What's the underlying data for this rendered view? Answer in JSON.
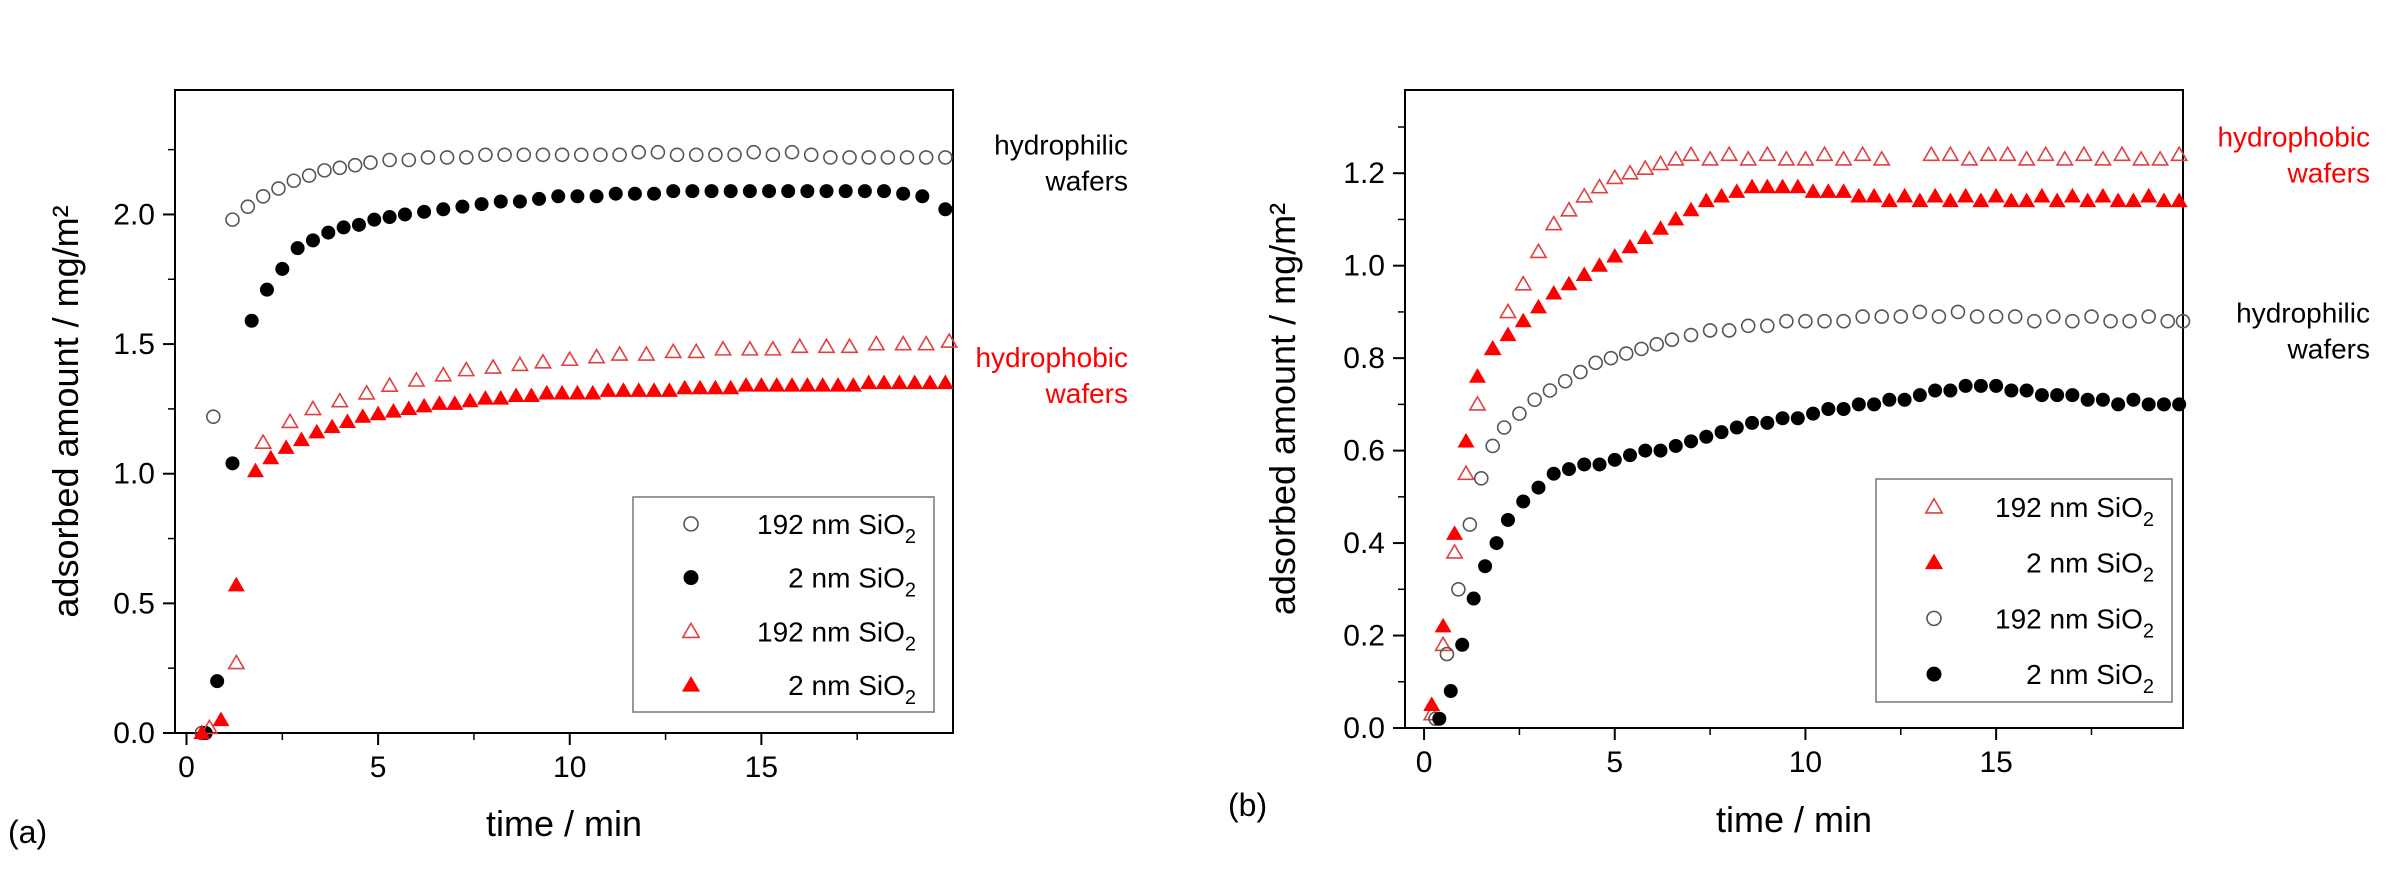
{
  "chart_data": [
    {
      "type": "scatter",
      "panel_label": "(a)",
      "xlabel": "time / min",
      "ylabel": "adsorbed amount / mg/m²",
      "xlim": [
        -0.3,
        20
      ],
      "ylim": [
        0,
        2.48
      ],
      "xticks": [
        0,
        5,
        10,
        15
      ],
      "xtick_labels": [
        "0",
        "5",
        "10",
        "15"
      ],
      "yticks": [
        0,
        0.5,
        1.0,
        1.5,
        2.0
      ],
      "ytick_labels": [
        "0.0",
        "0.5",
        "1.0",
        "1.5",
        "2.0"
      ],
      "annotations": [
        {
          "lines": [
            "hydrophilic",
            "wafers"
          ],
          "color": "#000000",
          "anchor": 2.2
        },
        {
          "lines": [
            "hydrophobic",
            "wafers"
          ],
          "color": "#ff0000",
          "anchor": 1.38
        }
      ],
      "legend": [
        {
          "size": "192",
          "unit": "nm SiO",
          "sub": "2",
          "marker": "circle-open",
          "color": "#555555"
        },
        {
          "size": "2",
          "unit": "nm SiO",
          "sub": "2",
          "marker": "circle-filled",
          "color": "#000000"
        },
        {
          "size": "192",
          "unit": "nm SiO",
          "sub": "2",
          "marker": "triangle-open",
          "color": "#e04040"
        },
        {
          "size": "2",
          "unit": "nm SiO",
          "sub": "2",
          "marker": "triangle-filled",
          "color": "#ff0000"
        }
      ],
      "series": [
        {
          "name": "192 nm SiO2 (hydrophilic)",
          "marker": "circle-open",
          "color": "#555555",
          "x": [
            0.4,
            0.7,
            1.2,
            1.6,
            2.0,
            2.4,
            2.8,
            3.2,
            3.6,
            4.0,
            4.4,
            4.8,
            5.3,
            5.8,
            6.3,
            6.8,
            7.3,
            7.8,
            8.3,
            8.8,
            9.3,
            9.8,
            10.3,
            10.8,
            11.3,
            11.8,
            12.3,
            12.8,
            13.3,
            13.8,
            14.3,
            14.8,
            15.3,
            15.8,
            16.3,
            16.8,
            17.3,
            17.8,
            18.3,
            18.8,
            19.3,
            19.8
          ],
          "y": [
            0.0,
            1.22,
            1.98,
            2.03,
            2.07,
            2.1,
            2.13,
            2.15,
            2.17,
            2.18,
            2.19,
            2.2,
            2.21,
            2.21,
            2.22,
            2.22,
            2.22,
            2.23,
            2.23,
            2.23,
            2.23,
            2.23,
            2.23,
            2.23,
            2.23,
            2.24,
            2.24,
            2.23,
            2.23,
            2.23,
            2.23,
            2.24,
            2.23,
            2.24,
            2.23,
            2.22,
            2.22,
            2.22,
            2.22,
            2.22,
            2.22,
            2.22
          ]
        },
        {
          "name": "2 nm SiO2 (hydrophilic)",
          "marker": "circle-filled",
          "color": "#000000",
          "x": [
            0.5,
            0.8,
            1.2,
            1.7,
            2.1,
            2.5,
            2.9,
            3.3,
            3.7,
            4.1,
            4.5,
            4.9,
            5.3,
            5.7,
            6.2,
            6.7,
            7.2,
            7.7,
            8.2,
            8.7,
            9.2,
            9.7,
            10.2,
            10.7,
            11.2,
            11.7,
            12.2,
            12.7,
            13.2,
            13.7,
            14.2,
            14.7,
            15.2,
            15.7,
            16.2,
            16.7,
            17.2,
            17.7,
            18.2,
            18.7,
            19.2,
            19.8
          ],
          "y": [
            0.0,
            0.2,
            1.04,
            1.59,
            1.71,
            1.79,
            1.87,
            1.9,
            1.93,
            1.95,
            1.96,
            1.98,
            1.99,
            2.0,
            2.01,
            2.02,
            2.03,
            2.04,
            2.05,
            2.05,
            2.06,
            2.07,
            2.07,
            2.07,
            2.08,
            2.08,
            2.08,
            2.09,
            2.09,
            2.09,
            2.09,
            2.09,
            2.09,
            2.09,
            2.09,
            2.09,
            2.09,
            2.09,
            2.09,
            2.08,
            2.07,
            2.02
          ]
        },
        {
          "name": "192 nm SiO2 (hydrophobic)",
          "marker": "triangle-open",
          "color": "#e04040",
          "x": [
            0.6,
            1.3,
            2.0,
            2.7,
            3.3,
            4.0,
            4.7,
            5.3,
            6.0,
            6.7,
            7.3,
            8.0,
            8.7,
            9.3,
            10.0,
            10.7,
            11.3,
            12.0,
            12.7,
            13.3,
            14.0,
            14.7,
            15.3,
            16.0,
            16.7,
            17.3,
            18.0,
            18.7,
            19.3,
            19.9
          ],
          "y": [
            0.02,
            0.27,
            1.12,
            1.2,
            1.25,
            1.28,
            1.31,
            1.34,
            1.36,
            1.38,
            1.4,
            1.41,
            1.42,
            1.43,
            1.44,
            1.45,
            1.46,
            1.46,
            1.47,
            1.47,
            1.48,
            1.48,
            1.48,
            1.49,
            1.49,
            1.49,
            1.5,
            1.5,
            1.5,
            1.51
          ]
        },
        {
          "name": "2 nm SiO2 (hydrophobic)",
          "marker": "triangle-filled",
          "color": "#ff0000",
          "x": [
            0.4,
            0.9,
            1.3,
            1.8,
            2.2,
            2.6,
            3.0,
            3.4,
            3.8,
            4.2,
            4.6,
            5.0,
            5.4,
            5.8,
            6.2,
            6.6,
            7.0,
            7.4,
            7.8,
            8.2,
            8.6,
            9.0,
            9.4,
            9.8,
            10.2,
            10.6,
            11.0,
            11.4,
            11.8,
            12.2,
            12.6,
            13.0,
            13.4,
            13.8,
            14.2,
            14.6,
            15.0,
            15.4,
            15.8,
            16.2,
            16.6,
            17.0,
            17.4,
            17.8,
            18.2,
            18.6,
            19.0,
            19.4,
            19.8
          ],
          "y": [
            0.0,
            0.05,
            0.57,
            1.01,
            1.06,
            1.1,
            1.13,
            1.16,
            1.18,
            1.2,
            1.22,
            1.23,
            1.24,
            1.25,
            1.26,
            1.27,
            1.27,
            1.28,
            1.29,
            1.29,
            1.3,
            1.3,
            1.31,
            1.31,
            1.31,
            1.31,
            1.32,
            1.32,
            1.32,
            1.32,
            1.32,
            1.33,
            1.33,
            1.33,
            1.33,
            1.34,
            1.34,
            1.34,
            1.34,
            1.34,
            1.34,
            1.34,
            1.34,
            1.35,
            1.35,
            1.35,
            1.35,
            1.35,
            1.35
          ]
        }
      ]
    },
    {
      "type": "scatter",
      "panel_label": "(b)",
      "xlabel": "time / min",
      "ylabel": "adsorbed amount / mg/m²",
      "xlim": [
        -0.5,
        19.9
      ],
      "ylim": [
        0,
        1.38
      ],
      "xticks": [
        0,
        5,
        10,
        15
      ],
      "xtick_labels": [
        "0",
        "5",
        "10",
        "15"
      ],
      "yticks": [
        0,
        0.2,
        0.4,
        0.6,
        0.8,
        1.0,
        1.2
      ],
      "ytick_labels": [
        "0.0",
        "0.2",
        "0.4",
        "0.6",
        "0.8",
        "1.0",
        "1.2"
      ],
      "annotations": [
        {
          "lines": [
            "hydrophobic",
            "wafers"
          ],
          "color": "#ff0000",
          "anchor": 1.24
        },
        {
          "lines": [
            "hydrophilic",
            "wafers"
          ],
          "color": "#000000",
          "anchor": 0.86
        }
      ],
      "legend": [
        {
          "size": "192",
          "unit": "nm SiO",
          "sub": "2",
          "marker": "triangle-open",
          "color": "#e04040"
        },
        {
          "size": "2",
          "unit": "nm SiO",
          "sub": "2",
          "marker": "triangle-filled",
          "color": "#ff0000"
        },
        {
          "size": "192",
          "unit": "nm SiO",
          "sub": "2",
          "marker": "circle-open",
          "color": "#555555"
        },
        {
          "size": "2",
          "unit": "nm SiO",
          "sub": "2",
          "marker": "circle-filled",
          "color": "#000000"
        }
      ],
      "series": [
        {
          "name": "192 nm SiO2 (hydrophobic)",
          "marker": "triangle-open",
          "color": "#e04040",
          "x": [
            0.2,
            0.5,
            0.8,
            1.1,
            1.4,
            1.8,
            2.2,
            2.6,
            3.0,
            3.4,
            3.8,
            4.2,
            4.6,
            5.0,
            5.4,
            5.8,
            6.2,
            6.6,
            7.0,
            7.5,
            8.0,
            8.5,
            9.0,
            9.5,
            10.0,
            10.5,
            11.0,
            11.5,
            12.0,
            13.3,
            13.8,
            14.3,
            14.8,
            15.3,
            15.8,
            16.3,
            16.8,
            17.3,
            17.8,
            18.3,
            18.8,
            19.3,
            19.8
          ],
          "y": [
            0.03,
            0.18,
            0.38,
            0.55,
            0.7,
            0.82,
            0.9,
            0.96,
            1.03,
            1.09,
            1.12,
            1.15,
            1.17,
            1.19,
            1.2,
            1.21,
            1.22,
            1.23,
            1.24,
            1.23,
            1.24,
            1.23,
            1.24,
            1.23,
            1.23,
            1.24,
            1.23,
            1.24,
            1.23,
            1.24,
            1.24,
            1.23,
            1.24,
            1.24,
            1.23,
            1.24,
            1.23,
            1.24,
            1.23,
            1.24,
            1.23,
            1.23,
            1.24
          ]
        },
        {
          "name": "2 nm SiO2 (hydrophobic)",
          "marker": "triangle-filled",
          "color": "#ff0000",
          "x": [
            0.2,
            0.5,
            0.8,
            1.1,
            1.4,
            1.8,
            2.2,
            2.6,
            3.0,
            3.4,
            3.8,
            4.2,
            4.6,
            5.0,
            5.4,
            5.8,
            6.2,
            6.6,
            7.0,
            7.4,
            7.8,
            8.2,
            8.6,
            9.0,
            9.4,
            9.8,
            10.2,
            10.6,
            11.0,
            11.4,
            11.8,
            12.2,
            12.6,
            13.0,
            13.4,
            13.8,
            14.2,
            14.6,
            15.0,
            15.4,
            15.8,
            16.2,
            16.6,
            17.0,
            17.4,
            17.8,
            18.2,
            18.6,
            19.0,
            19.4,
            19.8
          ],
          "y": [
            0.05,
            0.22,
            0.42,
            0.62,
            0.76,
            0.82,
            0.85,
            0.88,
            0.91,
            0.94,
            0.96,
            0.98,
            1.0,
            1.02,
            1.04,
            1.06,
            1.08,
            1.1,
            1.12,
            1.14,
            1.15,
            1.16,
            1.17,
            1.17,
            1.17,
            1.17,
            1.16,
            1.16,
            1.16,
            1.15,
            1.15,
            1.14,
            1.15,
            1.14,
            1.15,
            1.14,
            1.15,
            1.14,
            1.15,
            1.14,
            1.14,
            1.15,
            1.14,
            1.15,
            1.14,
            1.15,
            1.14,
            1.14,
            1.15,
            1.14,
            1.14
          ]
        },
        {
          "name": "192 nm SiO2 (hydrophilic)",
          "marker": "circle-open",
          "color": "#555555",
          "x": [
            0.3,
            0.6,
            0.9,
            1.2,
            1.5,
            1.8,
            2.1,
            2.5,
            2.9,
            3.3,
            3.7,
            4.1,
            4.5,
            4.9,
            5.3,
            5.7,
            6.1,
            6.5,
            7.0,
            7.5,
            8.0,
            8.5,
            9.0,
            9.5,
            10.0,
            10.5,
            11.0,
            11.5,
            12.0,
            12.5,
            13.0,
            13.5,
            14.0,
            14.5,
            15.0,
            15.5,
            16.0,
            16.5,
            17.0,
            17.5,
            18.0,
            18.5,
            19.0,
            19.5,
            19.9
          ],
          "y": [
            0.02,
            0.16,
            0.3,
            0.44,
            0.54,
            0.61,
            0.65,
            0.68,
            0.71,
            0.73,
            0.75,
            0.77,
            0.79,
            0.8,
            0.81,
            0.82,
            0.83,
            0.84,
            0.85,
            0.86,
            0.86,
            0.87,
            0.87,
            0.88,
            0.88,
            0.88,
            0.88,
            0.89,
            0.89,
            0.89,
            0.9,
            0.89,
            0.9,
            0.89,
            0.89,
            0.89,
            0.88,
            0.89,
            0.88,
            0.89,
            0.88,
            0.88,
            0.89,
            0.88,
            0.88
          ]
        },
        {
          "name": "2 nm SiO2 (hydrophilic)",
          "marker": "circle-filled",
          "color": "#000000",
          "x": [
            0.4,
            0.7,
            1.0,
            1.3,
            1.6,
            1.9,
            2.2,
            2.6,
            3.0,
            3.4,
            3.8,
            4.2,
            4.6,
            5.0,
            5.4,
            5.8,
            6.2,
            6.6,
            7.0,
            7.4,
            7.8,
            8.2,
            8.6,
            9.0,
            9.4,
            9.8,
            10.2,
            10.6,
            11.0,
            11.4,
            11.8,
            12.2,
            12.6,
            13.0,
            13.4,
            13.8,
            14.2,
            14.6,
            15.0,
            15.4,
            15.8,
            16.2,
            16.6,
            17.0,
            17.4,
            17.8,
            18.2,
            18.6,
            19.0,
            19.4,
            19.8
          ],
          "y": [
            0.02,
            0.08,
            0.18,
            0.28,
            0.35,
            0.4,
            0.45,
            0.49,
            0.52,
            0.55,
            0.56,
            0.57,
            0.57,
            0.58,
            0.59,
            0.6,
            0.6,
            0.61,
            0.62,
            0.63,
            0.64,
            0.65,
            0.66,
            0.66,
            0.67,
            0.67,
            0.68,
            0.69,
            0.69,
            0.7,
            0.7,
            0.71,
            0.71,
            0.72,
            0.73,
            0.73,
            0.74,
            0.74,
            0.74,
            0.73,
            0.73,
            0.72,
            0.72,
            0.72,
            0.71,
            0.71,
            0.7,
            0.71,
            0.7,
            0.7,
            0.7
          ]
        }
      ]
    }
  ]
}
